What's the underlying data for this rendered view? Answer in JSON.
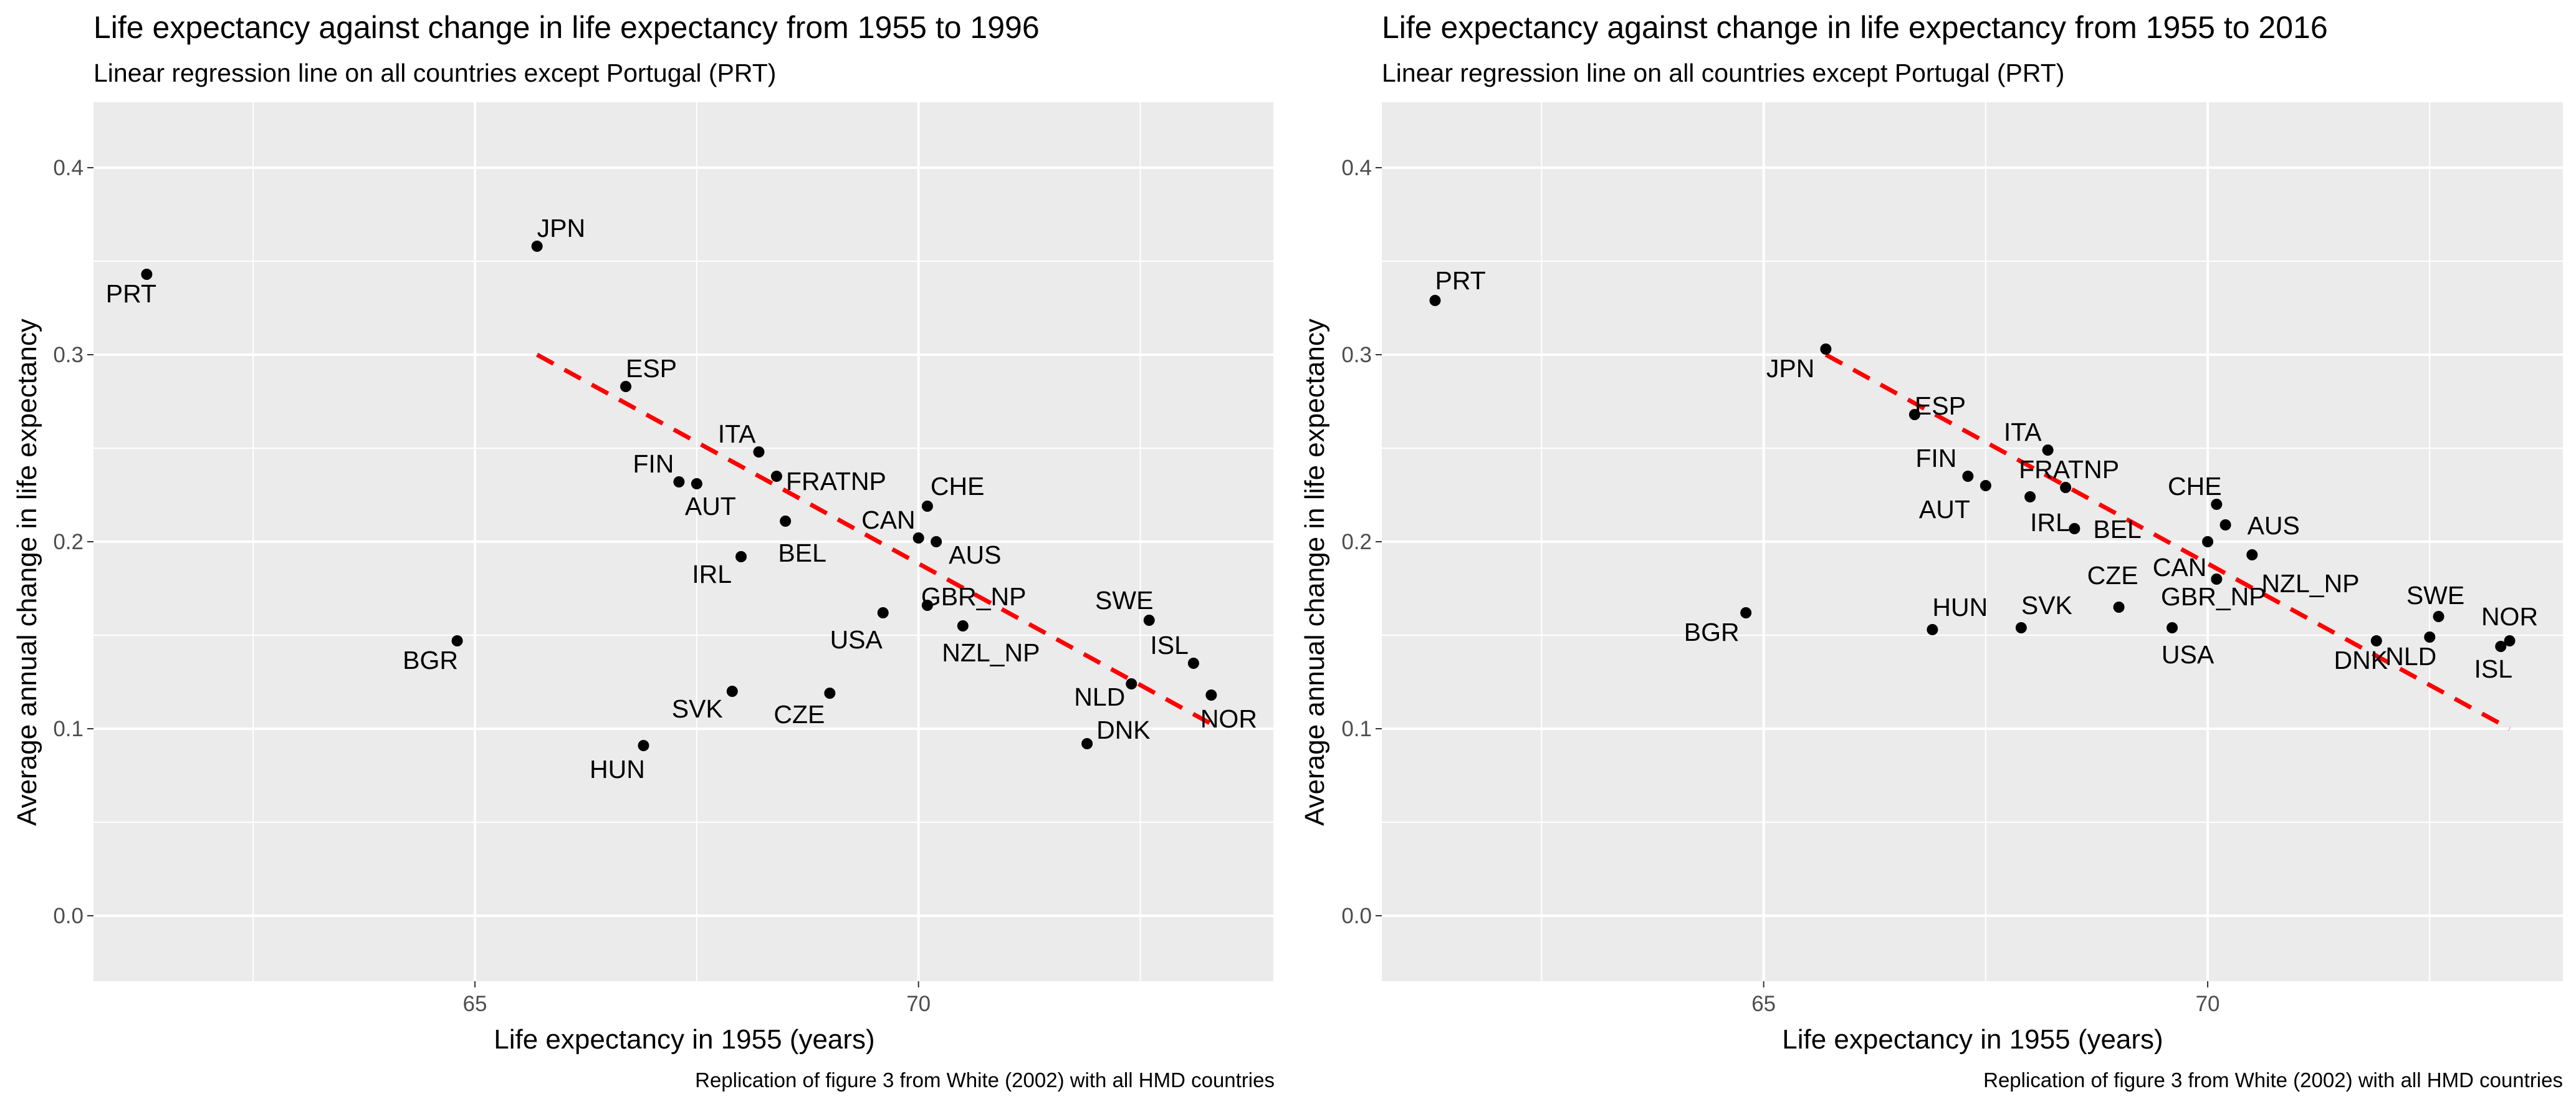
{
  "chart_data": [
    {
      "type": "scatter",
      "title": "Life expectancy against change in life expectancy from 1955 to 1996",
      "subtitle": "Linear regression line on all countries except Portugal (PRT)",
      "xlabel": "Life expectancy in 1955 (years)",
      "ylabel": "Average annual change in life expectancy",
      "caption": "Replication of figure 3 from White (2002) with all HMD countries",
      "xlim": [
        60.7,
        74.0
      ],
      "ylim": [
        -0.035,
        0.435
      ],
      "x_ticks": [
        65,
        70
      ],
      "x_minor_ticks": [
        62.5,
        67.5,
        72.5
      ],
      "y_ticks": [
        0.0,
        0.1,
        0.2,
        0.3,
        0.4
      ],
      "y_minor_ticks": [
        0.05,
        0.15,
        0.25,
        0.35
      ],
      "grid": true,
      "regression_line": {
        "x": [
          65.7,
          73.4
        ],
        "y": [
          0.3,
          0.1
        ],
        "color": "#ff0000",
        "style": "dashed"
      },
      "points": [
        {
          "label": "PRT",
          "x": 61.3,
          "y": 0.343
        },
        {
          "label": "JPN",
          "x": 65.7,
          "y": 0.358
        },
        {
          "label": "ESP",
          "x": 66.7,
          "y": 0.283
        },
        {
          "label": "ITA",
          "x": 68.2,
          "y": 0.248
        },
        {
          "label": "FIN",
          "x": 67.3,
          "y": 0.232
        },
        {
          "label": "AUT",
          "x": 67.5,
          "y": 0.231
        },
        {
          "label": "FRATNP",
          "x": 68.4,
          "y": 0.235
        },
        {
          "label": "BEL",
          "x": 68.5,
          "y": 0.211
        },
        {
          "label": "CHE",
          "x": 70.1,
          "y": 0.219
        },
        {
          "label": "CAN",
          "x": 70.0,
          "y": 0.202
        },
        {
          "label": "AUS",
          "x": 70.2,
          "y": 0.2
        },
        {
          "label": "IRL",
          "x": 68.0,
          "y": 0.192
        },
        {
          "label": "GBR_NP",
          "x": 70.1,
          "y": 0.166
        },
        {
          "label": "USA",
          "x": 69.6,
          "y": 0.162
        },
        {
          "label": "NZL_NP",
          "x": 70.5,
          "y": 0.155
        },
        {
          "label": "BGR",
          "x": 64.8,
          "y": 0.147
        },
        {
          "label": "SWE",
          "x": 72.6,
          "y": 0.158
        },
        {
          "label": "ISL",
          "x": 73.1,
          "y": 0.135
        },
        {
          "label": "NLD",
          "x": 72.4,
          "y": 0.124
        },
        {
          "label": "NOR",
          "x": 73.3,
          "y": 0.118
        },
        {
          "label": "DNK",
          "x": 71.9,
          "y": 0.092
        },
        {
          "label": "SVK",
          "x": 67.9,
          "y": 0.12
        },
        {
          "label": "CZE",
          "x": 69.0,
          "y": 0.119
        },
        {
          "label": "HUN",
          "x": 66.9,
          "y": 0.091
        }
      ]
    },
    {
      "type": "scatter",
      "title": "Life expectancy against change in life expectancy from 1955 to 2016",
      "subtitle": "Linear regression line on all countries except Portugal (PRT)",
      "xlabel": "Life expectancy in 1955 (years)",
      "ylabel": "Average annual change in life expectancy",
      "caption": "Replication of figure 3 from White (2002) with all HMD countries",
      "xlim": [
        60.7,
        74.0
      ],
      "ylim": [
        -0.035,
        0.435
      ],
      "x_ticks": [
        65,
        70
      ],
      "x_minor_ticks": [
        62.5,
        67.5,
        72.5
      ],
      "y_ticks": [
        0.0,
        0.1,
        0.2,
        0.3,
        0.4
      ],
      "y_minor_ticks": [
        0.05,
        0.15,
        0.25,
        0.35
      ],
      "grid": true,
      "regression_line": {
        "x": [
          65.7,
          73.4
        ],
        "y": [
          0.3,
          0.1
        ],
        "color": "#ff0000",
        "style": "dashed"
      },
      "points": [
        {
          "label": "PRT",
          "x": 61.3,
          "y": 0.329
        },
        {
          "label": "JPN",
          "x": 65.7,
          "y": 0.303
        },
        {
          "label": "ESP",
          "x": 66.7,
          "y": 0.268
        },
        {
          "label": "ITA",
          "x": 68.2,
          "y": 0.249
        },
        {
          "label": "FIN",
          "x": 67.3,
          "y": 0.235
        },
        {
          "label": "AUT",
          "x": 67.5,
          "y": 0.23
        },
        {
          "label": "FRATNP",
          "x": 68.4,
          "y": 0.229
        },
        {
          "label": "IRL",
          "x": 68.0,
          "y": 0.224
        },
        {
          "label": "BEL",
          "x": 68.5,
          "y": 0.207
        },
        {
          "label": "CHE",
          "x": 70.1,
          "y": 0.22
        },
        {
          "label": "AUS",
          "x": 70.2,
          "y": 0.209
        },
        {
          "label": "CAN",
          "x": 70.0,
          "y": 0.2
        },
        {
          "label": "NZL_NP",
          "x": 70.5,
          "y": 0.193
        },
        {
          "label": "GBR_NP",
          "x": 70.1,
          "y": 0.18
        },
        {
          "label": "USA",
          "x": 69.6,
          "y": 0.154
        },
        {
          "label": "CZE",
          "x": 69.0,
          "y": 0.165
        },
        {
          "label": "BGR",
          "x": 64.8,
          "y": 0.162
        },
        {
          "label": "HUN",
          "x": 66.9,
          "y": 0.153
        },
        {
          "label": "SVK",
          "x": 67.9,
          "y": 0.154
        },
        {
          "label": "SWE",
          "x": 72.6,
          "y": 0.16
        },
        {
          "label": "NOR",
          "x": 73.4,
          "y": 0.147
        },
        {
          "label": "ISL",
          "x": 73.3,
          "y": 0.144
        },
        {
          "label": "NLD",
          "x": 72.5,
          "y": 0.149
        },
        {
          "label": "DNK",
          "x": 71.9,
          "y": 0.147
        }
      ]
    }
  ]
}
